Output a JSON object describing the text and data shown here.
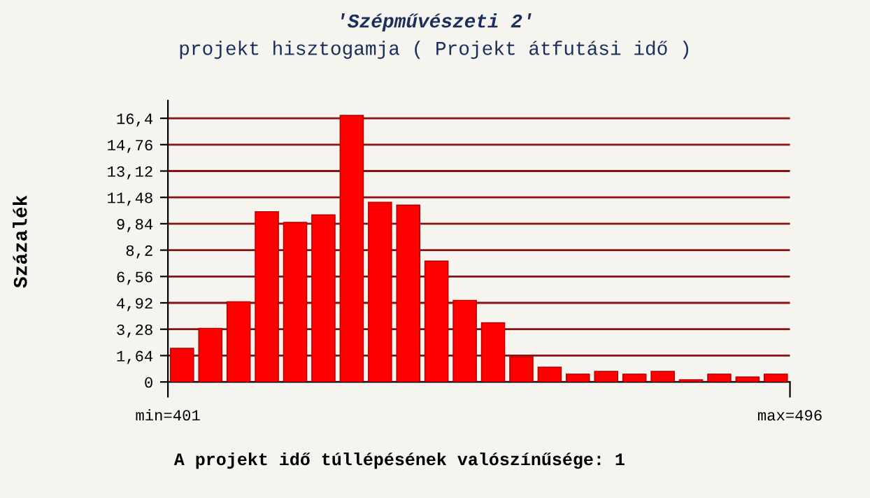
{
  "chart_data": {
    "type": "histogram",
    "title": "'Szépművészeti 2'",
    "subtitle": "projekt hisztogamja ( Projekt átfutási idő )",
    "ylabel": "Százalék",
    "annotations": [
      "A projekt idő túllépésének valószínűsége: 1"
    ],
    "bins": [
      401,
      405.32,
      409.64,
      413.95,
      418.27,
      422.59,
      426.91,
      431.23,
      435.55,
      439.86,
      444.18,
      448.5,
      452.82,
      457.14,
      461.45,
      465.77,
      470.09,
      474.41,
      478.73,
      483.05,
      487.36,
      491.68,
      496
    ],
    "values": [
      2.09,
      3.34,
      4.99,
      10.59,
      9.93,
      10.39,
      16.58,
      11.18,
      11.0,
      7.52,
      5.08,
      3.68,
      1.57,
      0.92,
      0.49,
      0.66,
      0.49,
      0.66,
      0.14,
      0.49,
      0.31,
      0.49
    ],
    "color": "#ff0000",
    "xlim": [
      401,
      496
    ],
    "xticks": [
      {
        "value": 401,
        "label": "min=401"
      },
      {
        "value": 496,
        "label": "max=496"
      }
    ],
    "ylim": [
      0,
      17.5
    ],
    "yticks": [
      0,
      {
        "value": 1.64,
        "label": "1,64"
      },
      {
        "value": 3.28,
        "label": "3,28"
      },
      {
        "value": 4.92,
        "label": "4,92"
      },
      {
        "value": 6.56,
        "label": "6,56"
      },
      {
        "value": 8.2,
        "label": "8,2"
      },
      {
        "value": 9.84,
        "label": "9,84"
      },
      {
        "value": 11.48,
        "label": "11,48"
      },
      {
        "value": 13.12,
        "label": "13,12"
      },
      {
        "value": 14.76,
        "label": "14,76"
      },
      {
        "value": 16.4,
        "label": "16,4"
      }
    ],
    "grid": "y",
    "legend": false
  }
}
